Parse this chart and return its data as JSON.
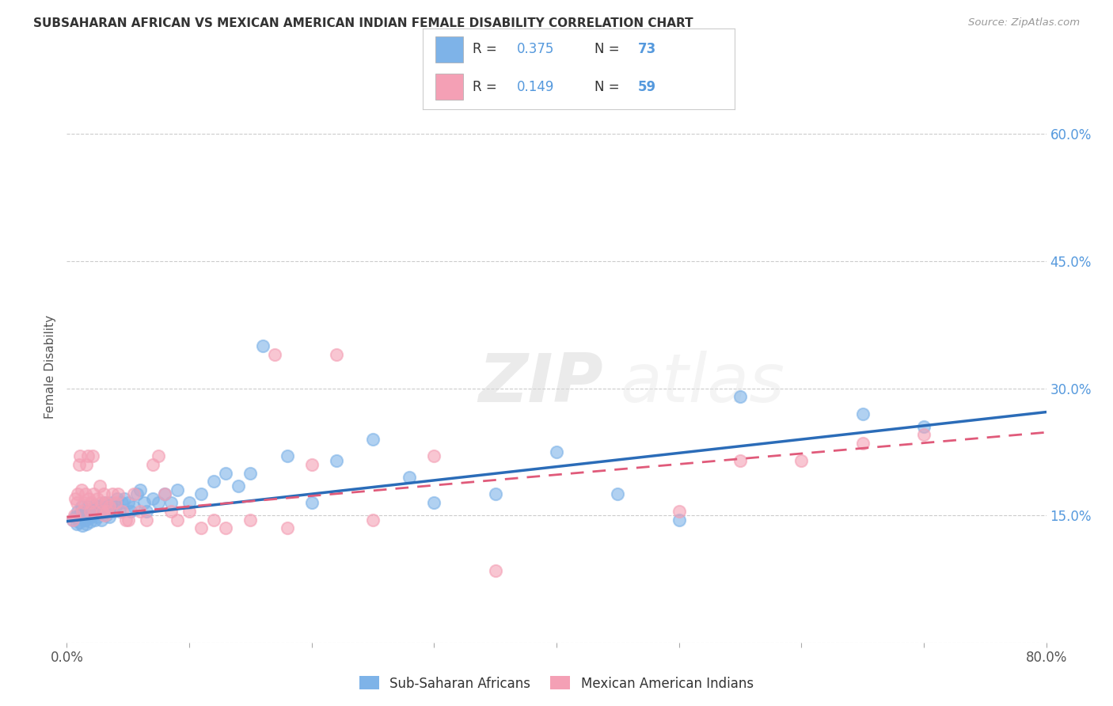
{
  "title": "SUBSAHARAN AFRICAN VS MEXICAN AMERICAN INDIAN FEMALE DISABILITY CORRELATION CHART",
  "source": "Source: ZipAtlas.com",
  "ylabel": "Female Disability",
  "xmin": 0.0,
  "xmax": 0.8,
  "ymin": 0.0,
  "ymax": 0.65,
  "xticks": [
    0.0,
    0.1,
    0.2,
    0.3,
    0.4,
    0.5,
    0.6,
    0.7,
    0.8
  ],
  "xticklabels": [
    "0.0%",
    "",
    "",
    "",
    "",
    "",
    "",
    "",
    "80.0%"
  ],
  "yticks": [
    0.0,
    0.15,
    0.3,
    0.45,
    0.6
  ],
  "yticklabels_right": [
    "",
    "15.0%",
    "30.0%",
    "45.0%",
    "60.0%"
  ],
  "grid_color": "#cccccc",
  "background_color": "#ffffff",
  "blue_R": 0.375,
  "blue_N": 73,
  "pink_R": 0.149,
  "pink_N": 59,
  "blue_color": "#7EB3E8",
  "pink_color": "#F4A0B5",
  "blue_line_color": "#2B6CB8",
  "pink_line_color": "#E05A7A",
  "legend_label_blue": "Sub-Saharan Africans",
  "legend_label_pink": "Mexican American Indians",
  "watermark_zip": "ZIP",
  "watermark_atlas": "atlas",
  "blue_scatter_x": [
    0.005,
    0.007,
    0.008,
    0.009,
    0.01,
    0.01,
    0.012,
    0.013,
    0.013,
    0.014,
    0.015,
    0.016,
    0.016,
    0.017,
    0.018,
    0.018,
    0.019,
    0.02,
    0.02,
    0.021,
    0.022,
    0.023,
    0.023,
    0.024,
    0.025,
    0.026,
    0.027,
    0.028,
    0.03,
    0.031,
    0.032,
    0.033,
    0.034,
    0.035,
    0.036,
    0.038,
    0.04,
    0.041,
    0.043,
    0.045,
    0.047,
    0.05,
    0.052,
    0.055,
    0.057,
    0.06,
    0.063,
    0.065,
    0.07,
    0.075,
    0.08,
    0.085,
    0.09,
    0.1,
    0.11,
    0.12,
    0.13,
    0.14,
    0.15,
    0.16,
    0.18,
    0.2,
    0.22,
    0.25,
    0.28,
    0.3,
    0.35,
    0.4,
    0.45,
    0.5,
    0.55,
    0.65,
    0.7
  ],
  "blue_scatter_y": [
    0.145,
    0.148,
    0.14,
    0.155,
    0.15,
    0.142,
    0.16,
    0.155,
    0.138,
    0.15,
    0.145,
    0.155,
    0.14,
    0.16,
    0.148,
    0.152,
    0.143,
    0.155,
    0.148,
    0.15,
    0.157,
    0.145,
    0.162,
    0.155,
    0.148,
    0.16,
    0.152,
    0.145,
    0.155,
    0.165,
    0.15,
    0.16,
    0.155,
    0.148,
    0.165,
    0.155,
    0.16,
    0.17,
    0.155,
    0.165,
    0.17,
    0.165,
    0.155,
    0.16,
    0.175,
    0.18,
    0.165,
    0.155,
    0.17,
    0.165,
    0.175,
    0.165,
    0.18,
    0.165,
    0.175,
    0.19,
    0.2,
    0.185,
    0.2,
    0.35,
    0.22,
    0.165,
    0.215,
    0.24,
    0.195,
    0.165,
    0.175,
    0.225,
    0.175,
    0.145,
    0.29,
    0.27,
    0.255
  ],
  "pink_scatter_x": [
    0.005,
    0.006,
    0.007,
    0.008,
    0.009,
    0.01,
    0.011,
    0.012,
    0.013,
    0.014,
    0.015,
    0.016,
    0.017,
    0.018,
    0.019,
    0.02,
    0.021,
    0.022,
    0.023,
    0.025,
    0.027,
    0.028,
    0.029,
    0.03,
    0.031,
    0.032,
    0.033,
    0.035,
    0.037,
    0.04,
    0.042,
    0.045,
    0.048,
    0.05,
    0.055,
    0.06,
    0.065,
    0.07,
    0.075,
    0.08,
    0.085,
    0.09,
    0.1,
    0.11,
    0.12,
    0.13,
    0.15,
    0.17,
    0.18,
    0.2,
    0.22,
    0.25,
    0.3,
    0.35,
    0.5,
    0.55,
    0.6,
    0.65,
    0.7
  ],
  "pink_scatter_y": [
    0.145,
    0.15,
    0.17,
    0.165,
    0.175,
    0.21,
    0.22,
    0.18,
    0.155,
    0.165,
    0.175,
    0.21,
    0.22,
    0.17,
    0.155,
    0.165,
    0.22,
    0.175,
    0.155,
    0.17,
    0.185,
    0.165,
    0.155,
    0.175,
    0.15,
    0.165,
    0.155,
    0.16,
    0.175,
    0.165,
    0.175,
    0.155,
    0.145,
    0.145,
    0.175,
    0.155,
    0.145,
    0.21,
    0.22,
    0.175,
    0.155,
    0.145,
    0.155,
    0.135,
    0.145,
    0.135,
    0.145,
    0.34,
    0.135,
    0.21,
    0.34,
    0.145,
    0.22,
    0.085,
    0.155,
    0.215,
    0.215,
    0.235,
    0.245
  ],
  "blue_regline_x": [
    0.0,
    0.8
  ],
  "blue_regline_y": [
    0.143,
    0.272
  ],
  "pink_regline_x": [
    0.0,
    0.8
  ],
  "pink_regline_y": [
    0.148,
    0.248
  ]
}
